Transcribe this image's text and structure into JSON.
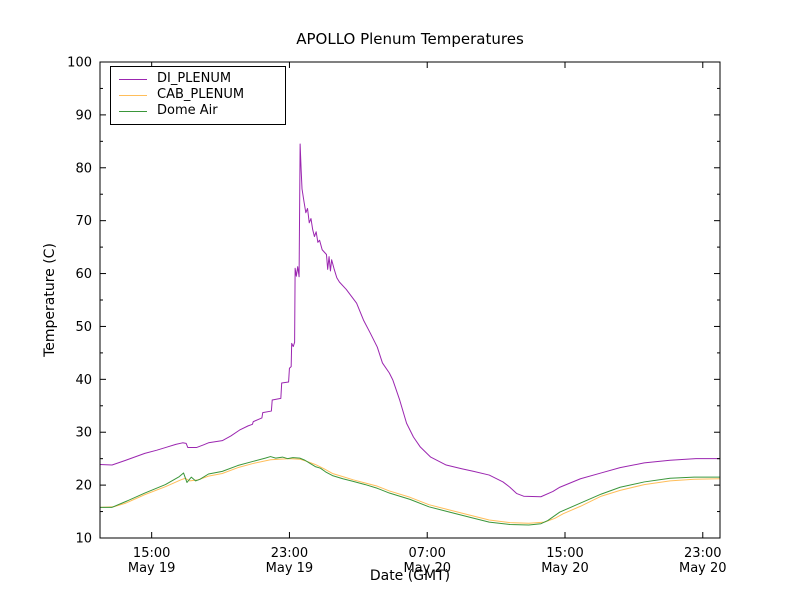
{
  "title": "APOLLO Plenum Temperatures",
  "chart_data": {
    "type": "line",
    "title": "APOLLO Plenum Temperatures",
    "xlabel": "Date (GMT)",
    "ylabel": "Temperature (C)",
    "xlim": [
      0,
      36
    ],
    "ylim": [
      10,
      100
    ],
    "x_unit_note": "hours after 12:00 GMT May 19",
    "grid": false,
    "x_ticks": [
      {
        "t": 3,
        "time": "15:00",
        "date": "May 19"
      },
      {
        "t": 11,
        "time": "23:00",
        "date": "May 19"
      },
      {
        "t": 19,
        "time": "07:00",
        "date": "May 20"
      },
      {
        "t": 27,
        "time": "15:00",
        "date": "May 20"
      },
      {
        "t": 35,
        "time": "23:00",
        "date": "May 20"
      }
    ],
    "y_ticks": [
      10,
      20,
      30,
      40,
      50,
      60,
      70,
      80,
      90,
      100
    ],
    "y_minor_ticks": [
      15,
      25,
      35,
      45,
      55,
      65,
      75,
      85,
      95
    ],
    "legend": {
      "position": "upper left"
    },
    "series": [
      {
        "name": "DI_PLENUM",
        "color": "#9B26B0",
        "points": [
          [
            0,
            23.9
          ],
          [
            0.7,
            23.8
          ],
          [
            1.5,
            24.7
          ],
          [
            2.6,
            26.0
          ],
          [
            3.3,
            26.6
          ],
          [
            3.8,
            27.1
          ],
          [
            4.4,
            27.7
          ],
          [
            4.8,
            28.0
          ],
          [
            5.0,
            27.9
          ],
          [
            5.1,
            27.1
          ],
          [
            5.6,
            27.1
          ],
          [
            6.0,
            27.6
          ],
          [
            6.3,
            28.0
          ],
          [
            7.1,
            28.4
          ],
          [
            7.6,
            29.3
          ],
          [
            8.1,
            30.4
          ],
          [
            8.6,
            31.2
          ],
          [
            8.85,
            31.5
          ],
          [
            8.9,
            32.0
          ],
          [
            9.4,
            32.7
          ],
          [
            9.45,
            33.7
          ],
          [
            9.95,
            34.0
          ],
          [
            10.0,
            36.1
          ],
          [
            10.5,
            36.4
          ],
          [
            10.55,
            39.3
          ],
          [
            10.95,
            39.5
          ],
          [
            11.0,
            42.1
          ],
          [
            11.1,
            42.4
          ],
          [
            11.13,
            46.8
          ],
          [
            11.22,
            46.2
          ],
          [
            11.3,
            47.0
          ],
          [
            11.33,
            61.0
          ],
          [
            11.4,
            59.5
          ],
          [
            11.48,
            61.3
          ],
          [
            11.56,
            59.4
          ],
          [
            11.62,
            84.5
          ],
          [
            11.68,
            79.5
          ],
          [
            11.73,
            76.0
          ],
          [
            11.85,
            73.5
          ],
          [
            11.95,
            71.5
          ],
          [
            12.05,
            72.3
          ],
          [
            12.15,
            69.6
          ],
          [
            12.25,
            70.4
          ],
          [
            12.35,
            68.3
          ],
          [
            12.45,
            67.0
          ],
          [
            12.55,
            67.9
          ],
          [
            12.65,
            65.9
          ],
          [
            12.75,
            66.3
          ],
          [
            12.9,
            64.5
          ],
          [
            13.15,
            63.6
          ],
          [
            13.22,
            60.8
          ],
          [
            13.3,
            63.2
          ],
          [
            13.38,
            60.5
          ],
          [
            13.45,
            62.6
          ],
          [
            13.6,
            60.8
          ],
          [
            13.75,
            59.2
          ],
          [
            13.9,
            58.4
          ],
          [
            14.3,
            57.0
          ],
          [
            14.9,
            54.4
          ],
          [
            15.3,
            51.2
          ],
          [
            15.7,
            48.7
          ],
          [
            16.1,
            46.1
          ],
          [
            16.4,
            43.1
          ],
          [
            16.8,
            41.2
          ],
          [
            17.0,
            39.9
          ],
          [
            17.4,
            36.1
          ],
          [
            17.8,
            31.7
          ],
          [
            18.2,
            29.1
          ],
          [
            18.6,
            27.2
          ],
          [
            19.2,
            25.3
          ],
          [
            20.1,
            23.8
          ],
          [
            21.0,
            23.1
          ],
          [
            21.7,
            22.6
          ],
          [
            22.6,
            21.9
          ],
          [
            23.4,
            20.6
          ],
          [
            23.8,
            19.6
          ],
          [
            24.2,
            18.4
          ],
          [
            24.6,
            17.9
          ],
          [
            25.6,
            17.8
          ],
          [
            26.3,
            18.8
          ],
          [
            26.7,
            19.6
          ],
          [
            27.9,
            21.2
          ],
          [
            29.1,
            22.3
          ],
          [
            30.2,
            23.3
          ],
          [
            31.6,
            24.2
          ],
          [
            33.1,
            24.7
          ],
          [
            34.6,
            25.0
          ],
          [
            36,
            25.0
          ]
        ]
      },
      {
        "name": "CAB_PLENUM",
        "color": "#FFBE5A",
        "points": [
          [
            0,
            15.8
          ],
          [
            0.8,
            15.9
          ],
          [
            1.5,
            16.6
          ],
          [
            2.6,
            18.2
          ],
          [
            3.8,
            19.7
          ],
          [
            4.7,
            21.0
          ],
          [
            4.95,
            21.3
          ],
          [
            5.2,
            20.8
          ],
          [
            5.7,
            21.0
          ],
          [
            6.3,
            21.7
          ],
          [
            7.1,
            22.2
          ],
          [
            8.0,
            23.3
          ],
          [
            8.9,
            24.1
          ],
          [
            9.9,
            24.8
          ],
          [
            11.0,
            25.0
          ],
          [
            11.6,
            24.9
          ],
          [
            12.0,
            24.5
          ],
          [
            12.5,
            23.9
          ],
          [
            13.0,
            23.1
          ],
          [
            13.5,
            22.2
          ],
          [
            14.1,
            21.6
          ],
          [
            14.7,
            21.0
          ],
          [
            15.4,
            20.4
          ],
          [
            16.1,
            19.8
          ],
          [
            16.8,
            18.9
          ],
          [
            18.0,
            17.7
          ],
          [
            19.1,
            16.3
          ],
          [
            20.3,
            15.3
          ],
          [
            21.5,
            14.3
          ],
          [
            22.6,
            13.4
          ],
          [
            23.8,
            12.9
          ],
          [
            24.9,
            12.8
          ],
          [
            25.8,
            13.0
          ],
          [
            26.4,
            13.7
          ],
          [
            26.9,
            14.6
          ],
          [
            27.9,
            16.0
          ],
          [
            29.1,
            17.9
          ],
          [
            30.2,
            19.0
          ],
          [
            31.6,
            20.1
          ],
          [
            33.1,
            20.8
          ],
          [
            34.5,
            21.1
          ],
          [
            36,
            21.2
          ]
        ]
      },
      {
        "name": "Dome Air",
        "color": "#3A963A",
        "points": [
          [
            0,
            15.8
          ],
          [
            0.7,
            15.8
          ],
          [
            1.5,
            16.9
          ],
          [
            2.6,
            18.5
          ],
          [
            3.8,
            20.1
          ],
          [
            4.6,
            21.6
          ],
          [
            4.85,
            22.3
          ],
          [
            5.05,
            20.5
          ],
          [
            5.3,
            21.5
          ],
          [
            5.55,
            20.8
          ],
          [
            5.8,
            21.1
          ],
          [
            6.3,
            22.1
          ],
          [
            7.1,
            22.6
          ],
          [
            8.0,
            23.7
          ],
          [
            8.9,
            24.5
          ],
          [
            9.6,
            25.1
          ],
          [
            9.9,
            25.4
          ],
          [
            10.2,
            25.1
          ],
          [
            10.6,
            25.3
          ],
          [
            10.9,
            25.0
          ],
          [
            11.2,
            25.2
          ],
          [
            11.6,
            25.1
          ],
          [
            11.9,
            24.7
          ],
          [
            12.2,
            24.1
          ],
          [
            12.5,
            23.5
          ],
          [
            12.8,
            23.2
          ],
          [
            13.1,
            22.5
          ],
          [
            13.5,
            21.8
          ],
          [
            14.1,
            21.2
          ],
          [
            14.7,
            20.7
          ],
          [
            15.4,
            20.1
          ],
          [
            16.1,
            19.4
          ],
          [
            16.8,
            18.5
          ],
          [
            18.0,
            17.3
          ],
          [
            19.1,
            15.9
          ],
          [
            20.3,
            14.9
          ],
          [
            21.5,
            13.9
          ],
          [
            22.6,
            13.0
          ],
          [
            23.8,
            12.55
          ],
          [
            24.9,
            12.45
          ],
          [
            25.6,
            12.7
          ],
          [
            26.0,
            13.3
          ],
          [
            26.7,
            14.9
          ],
          [
            27.9,
            16.6
          ],
          [
            29.1,
            18.3
          ],
          [
            30.2,
            19.6
          ],
          [
            31.6,
            20.6
          ],
          [
            33.1,
            21.3
          ],
          [
            34.5,
            21.5
          ],
          [
            36,
            21.5
          ]
        ]
      }
    ],
    "axis_color": "#000000"
  }
}
